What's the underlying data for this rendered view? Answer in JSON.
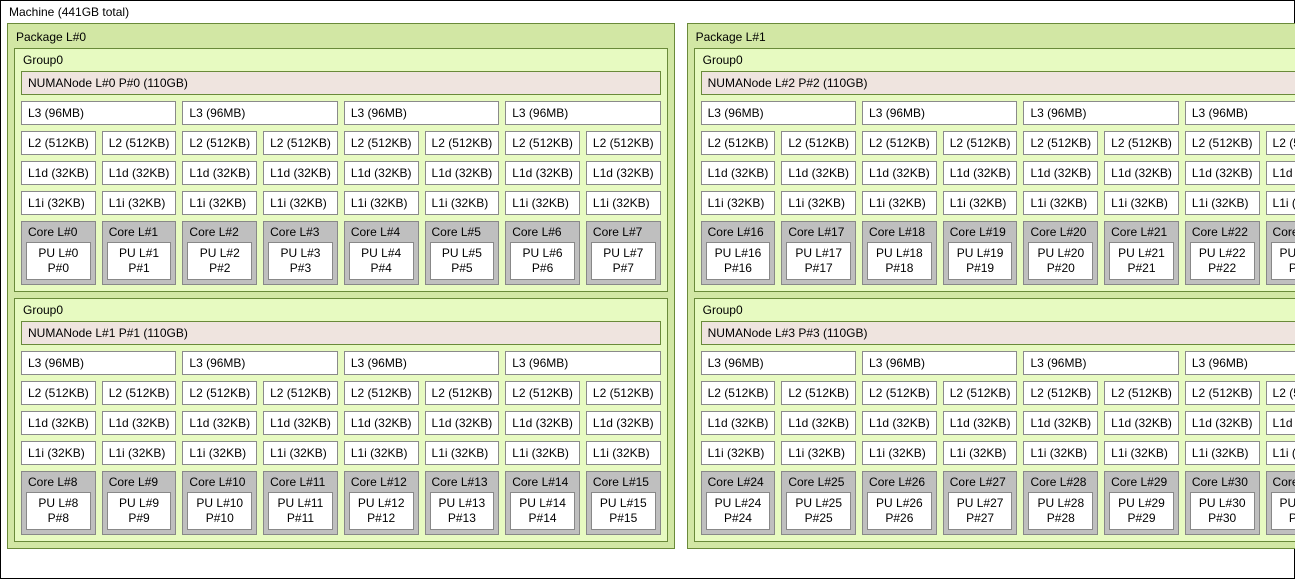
{
  "machine_label": "Machine (441GB total)",
  "l3_label": "L3 (96MB)",
  "l2_label": "L2 (512KB)",
  "l1d_label": "L1d (32KB)",
  "l1i_label": "L1i (32KB)",
  "group_label": "Group0",
  "colors": {
    "package_bg": "#d2e7a4",
    "group_bg": "#e7fac1",
    "numa_bg": "#efe4df",
    "core_bg": "#bfbfbf",
    "cell_bg": "#ffffff",
    "border": "#6a8a3a"
  },
  "packages": [
    {
      "label": "Package L#0",
      "groups": [
        {
          "numa": "NUMANode L#0 P#0 (110GB)",
          "core_start": 0
        },
        {
          "numa": "NUMANode L#1 P#1 (110GB)",
          "core_start": 8
        }
      ]
    },
    {
      "label": "Package L#1",
      "groups": [
        {
          "numa": "NUMANode L#2 P#2 (110GB)",
          "core_start": 16
        },
        {
          "numa": "NUMANode L#3 P#3 (110GB)",
          "core_start": 24
        }
      ]
    }
  ],
  "cores_per_group": 8,
  "l3_per_group": 4
}
